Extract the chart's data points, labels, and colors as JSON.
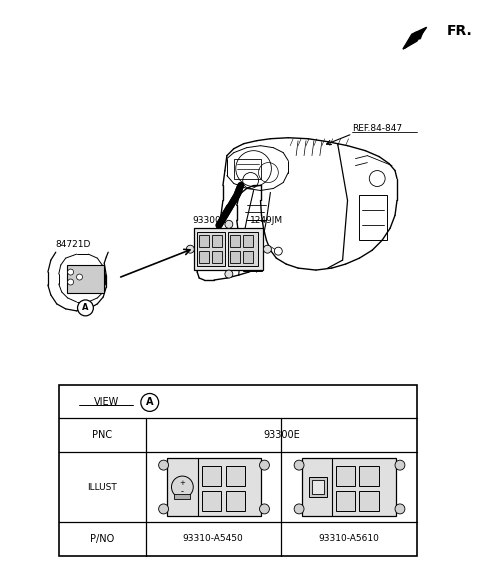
{
  "background_color": "#ffffff",
  "fig_width": 4.8,
  "fig_height": 5.73,
  "fr_label": "FR.",
  "ref_label": "REF.84-847",
  "label_84721D": "84721D",
  "label_93300E": "93300E",
  "label_1249JM": "1249JM",
  "table_pnc": "PNC",
  "table_pnc_val": "93300E",
  "table_illust": "ILLUST",
  "table_pno": "P/NO",
  "table_part1": "93310-A5450",
  "table_part2": "93310-A5610",
  "table_view": "VIEW"
}
